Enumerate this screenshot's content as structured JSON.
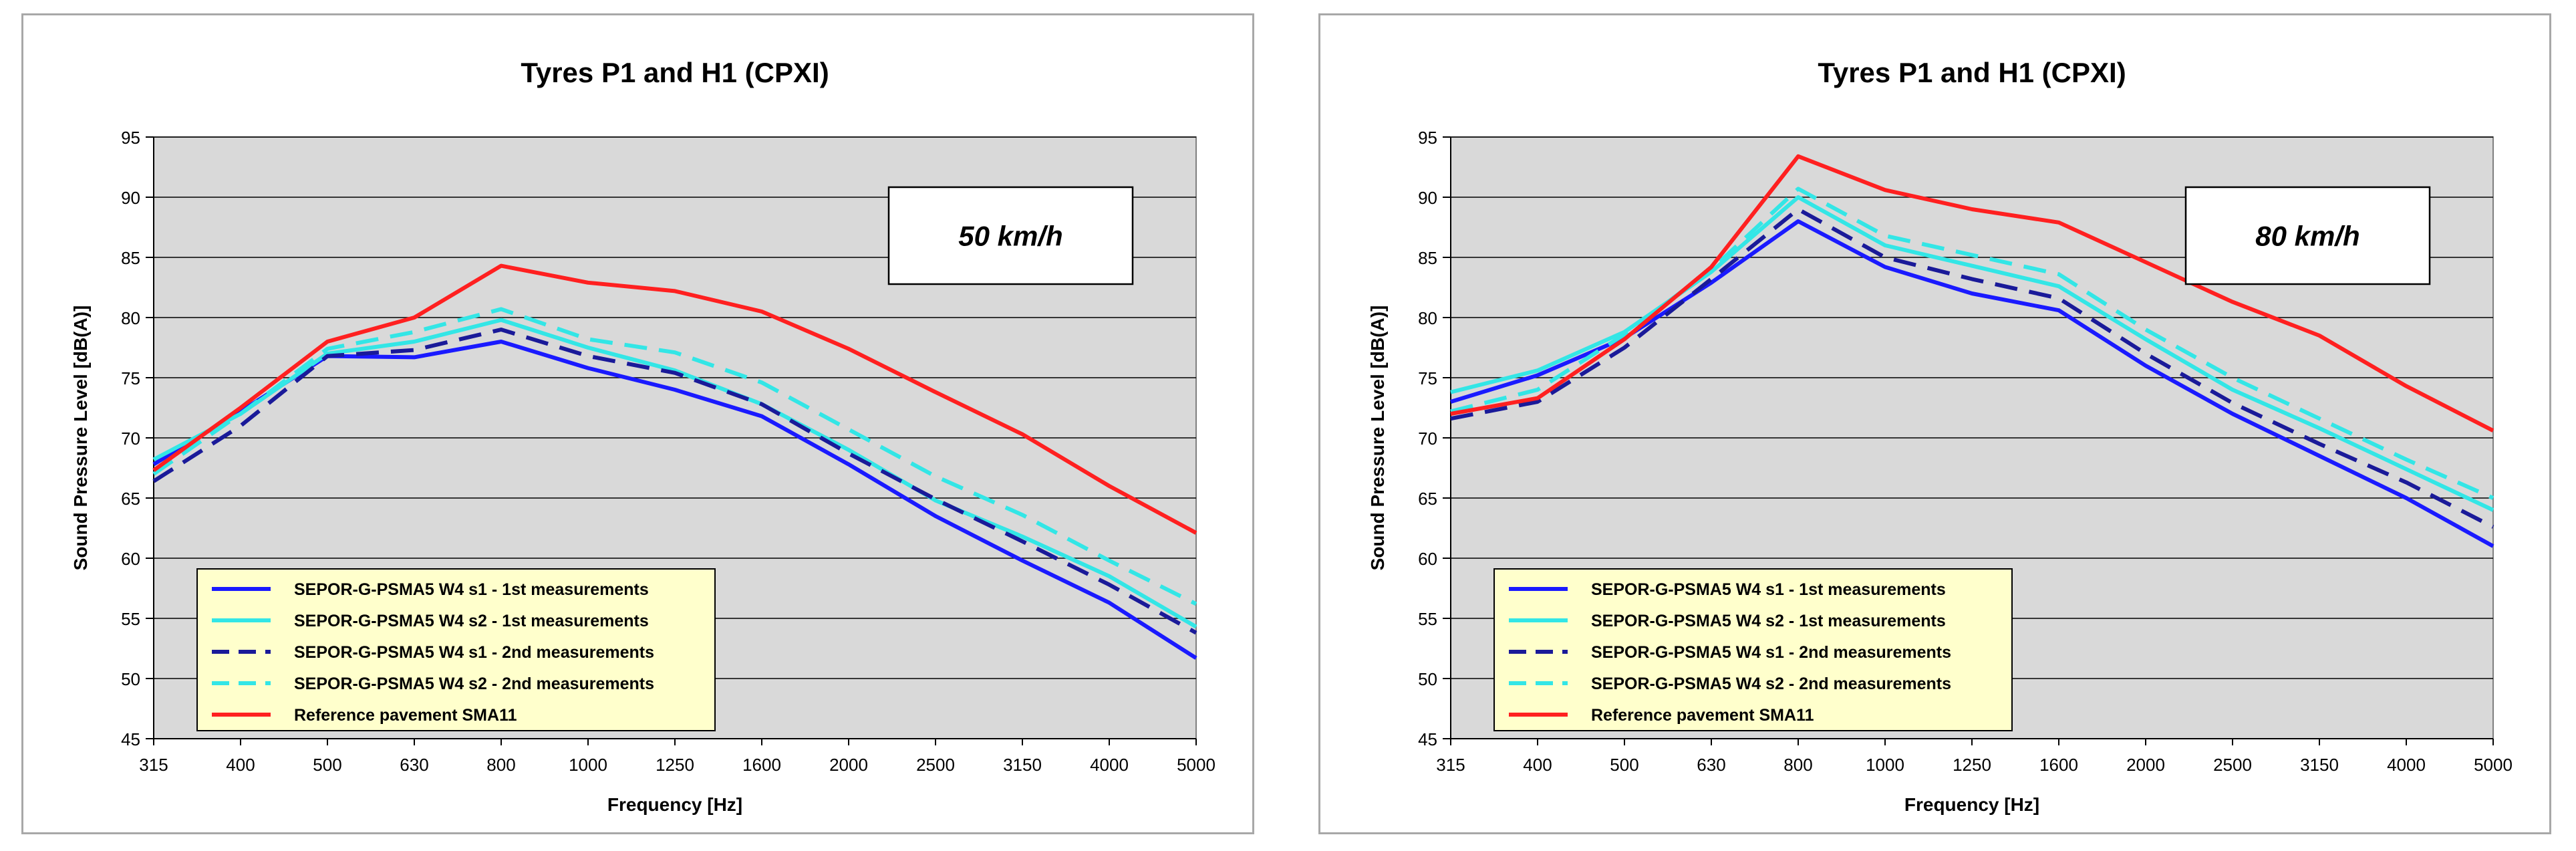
{
  "chart_data": [
    {
      "type": "line",
      "title": "Tyres P1 and H1   (CPXI)",
      "speed_label": "50 km/h",
      "xlabel": "Frequency  [Hz]",
      "ylabel": "Sound Pressure  Level  [dB(A)]",
      "ylim": [
        45,
        95
      ],
      "yticks": [
        "45",
        "50",
        "55",
        "60",
        "65",
        "70",
        "75",
        "80",
        "85",
        "90",
        "95"
      ],
      "categories": [
        "315",
        "400",
        "500",
        "630",
        "800",
        "1000",
        "1250",
        "1600",
        "2000",
        "2500",
        "3150",
        "4000",
        "5000"
      ],
      "grid": true,
      "legend_position": "bottom-left",
      "series": [
        {
          "name": "SEPOR-G-PSMA5 W4 s1 - 1st measurements",
          "color": "#1a1aff",
          "dash": "solid",
          "values": [
            67.8,
            72.2,
            76.8,
            76.7,
            78.0,
            75.8,
            74.0,
            71.8,
            67.8,
            63.5,
            59.8,
            56.3,
            51.7
          ]
        },
        {
          "name": "SEPOR-G-PSMA5 W4 s2 - 1st measurements",
          "color": "#33e6e6",
          "dash": "solid",
          "values": [
            68.2,
            72.0,
            77.0,
            78.0,
            79.8,
            77.5,
            75.6,
            72.8,
            69.0,
            64.8,
            61.8,
            58.5,
            54.3
          ]
        },
        {
          "name": "SEPOR-G-PSMA5 W4 s1 - 2nd measurements",
          "color": "#1a1a99",
          "dash": "dashed",
          "values": [
            66.4,
            71.0,
            76.8,
            77.3,
            79.0,
            76.8,
            75.4,
            72.8,
            68.7,
            64.9,
            61.4,
            57.8,
            53.8
          ]
        },
        {
          "name": "SEPOR-G-PSMA5 W4 s2 - 2nd measurements",
          "color": "#33e6e6",
          "dash": "dashed",
          "values": [
            67.0,
            72.0,
            77.4,
            78.8,
            80.7,
            78.2,
            77.1,
            74.6,
            70.7,
            66.8,
            63.6,
            59.8,
            56.2
          ]
        },
        {
          "name": "Reference pavement SMA11",
          "color": "#ff2020",
          "dash": "solid",
          "values": [
            67.3,
            72.5,
            78.0,
            80.0,
            84.3,
            82.9,
            82.2,
            80.5,
            77.4,
            73.8,
            70.3,
            66.0,
            62.1
          ]
        }
      ]
    },
    {
      "type": "line",
      "title": "Tyres P1 and H1   (CPXI)",
      "speed_label": "80 km/h",
      "xlabel": "Frequency  [Hz]",
      "ylabel": "Sound Pressure  Level  [dB(A)]",
      "ylim": [
        45,
        95
      ],
      "yticks": [
        "45",
        "50",
        "55",
        "60",
        "65",
        "70",
        "75",
        "80",
        "85",
        "90",
        "95"
      ],
      "categories": [
        "315",
        "400",
        "500",
        "630",
        "800",
        "1000",
        "1250",
        "1600",
        "2000",
        "2500",
        "3150",
        "4000",
        "5000"
      ],
      "grid": true,
      "legend_position": "bottom-left",
      "series": [
        {
          "name": "SEPOR-G-PSMA5 W4 s1 - 1st measurements",
          "color": "#1a1aff",
          "dash": "solid",
          "values": [
            73.0,
            75.2,
            78.3,
            82.9,
            88.0,
            84.2,
            82.0,
            80.6,
            76.0,
            72.0,
            68.5,
            65.0,
            61.0
          ]
        },
        {
          "name": "SEPOR-G-PSMA5 W4 s2 - 1st measurements",
          "color": "#33e6e6",
          "dash": "solid",
          "values": [
            73.8,
            75.6,
            78.8,
            83.8,
            90.0,
            86.0,
            84.3,
            82.6,
            78.2,
            74.0,
            70.8,
            67.4,
            64.0
          ]
        },
        {
          "name": "SEPOR-G-PSMA5 W4 s1 - 2nd measurements",
          "color": "#1a1a99",
          "dash": "dashed",
          "values": [
            71.6,
            73.0,
            77.5,
            83.2,
            89.0,
            85.0,
            83.2,
            81.6,
            77.0,
            72.9,
            69.5,
            66.3,
            62.6
          ]
        },
        {
          "name": "SEPOR-G-PSMA5 W4 s2 - 2nd measurements",
          "color": "#33e6e6",
          "dash": "dashed",
          "values": [
            72.2,
            74.0,
            78.6,
            84.0,
            90.7,
            86.8,
            85.2,
            83.6,
            79.0,
            75.0,
            71.6,
            68.2,
            65.0
          ]
        },
        {
          "name": "Reference pavement SMA11",
          "color": "#ff2020",
          "dash": "solid",
          "values": [
            72.0,
            73.3,
            78.2,
            84.2,
            93.4,
            90.6,
            89.0,
            87.9,
            84.6,
            81.3,
            78.5,
            74.3,
            70.6
          ]
        }
      ]
    }
  ]
}
